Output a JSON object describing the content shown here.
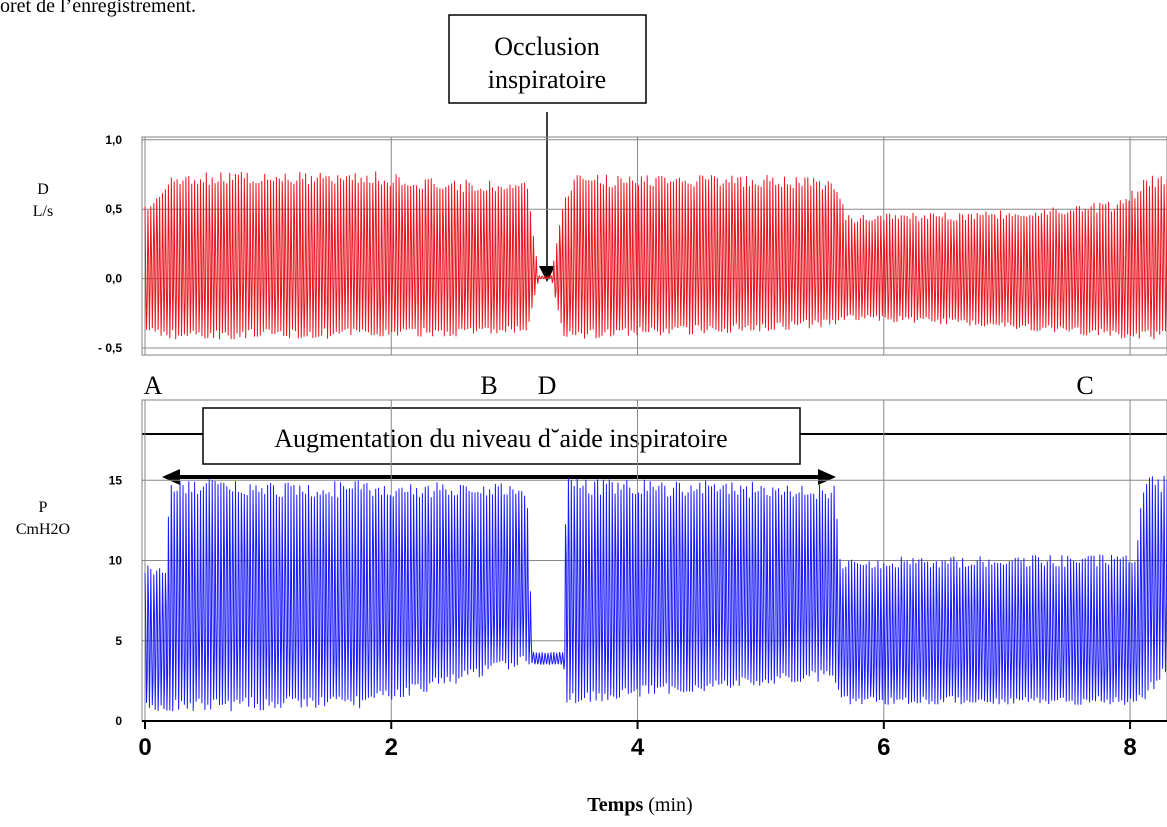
{
  "header_fragment": "oret de l’enregistrement.",
  "annotations": {
    "occlusion_line1": "Occlusion",
    "occlusion_line2": "inspiratoire",
    "augmentation": "Augmentation du niveau d˘aide inspiratoire",
    "point_A": "A",
    "point_B": "B",
    "point_D": "D",
    "point_C": "C"
  },
  "chart_data": [
    {
      "type": "line",
      "ylabel_line1": "D",
      "ylabel_line2": "L/s",
      "y_ticks": [
        "1,0",
        "0,5",
        "0,0",
        "- 0,5"
      ],
      "y_tick_values": [
        1.0,
        0.5,
        0.0,
        -0.5
      ],
      "ylim": [
        -0.55,
        1.02
      ],
      "xlim": [
        0,
        8.3
      ],
      "grid": true,
      "color": "#e8141e",
      "series": [
        {
          "x": [
            0.0,
            0.2,
            1.8,
            2.4,
            3.1,
            3.2,
            3.3,
            3.4,
            3.5,
            4.0,
            5.0,
            5.6,
            5.7,
            6.5,
            7.0,
            7.5,
            7.9,
            8.15,
            8.3
          ],
          "peak": [
            0.52,
            0.77,
            0.78,
            0.72,
            0.7,
            0.02,
            0.02,
            0.62,
            0.75,
            0.75,
            0.75,
            0.72,
            0.46,
            0.48,
            0.5,
            0.53,
            0.56,
            0.75,
            0.76
          ],
          "trough": [
            -0.38,
            -0.44,
            -0.43,
            -0.42,
            -0.4,
            0.0,
            0.0,
            -0.45,
            -0.44,
            -0.42,
            -0.38,
            -0.35,
            -0.3,
            -0.33,
            -0.36,
            -0.4,
            -0.43,
            -0.44,
            -0.45
          ]
        }
      ]
    },
    {
      "type": "line",
      "ylabel_line1": "P",
      "ylabel_line2": "CmH2O",
      "y_ticks": [
        "15",
        "10",
        "5",
        "0"
      ],
      "y_tick_values": [
        15,
        10,
        5,
        0
      ],
      "ylim": [
        0,
        20
      ],
      "xlim": [
        0,
        8.3
      ],
      "grid": true,
      "color": "#1a1aff",
      "xlabel_bold": "Temps",
      "xlabel_rest": " (min)",
      "x_ticks": [
        "0",
        "2",
        "4",
        "6",
        "8"
      ],
      "x_tick_values": [
        0,
        2,
        4,
        6,
        8
      ],
      "series": [
        {
          "x": [
            0.0,
            0.17,
            0.2,
            1.8,
            3.1,
            3.15,
            3.4,
            3.42,
            5.6,
            5.65,
            8.05,
            8.1,
            8.3
          ],
          "peak": [
            9.7,
            9.7,
            15.2,
            15.0,
            14.8,
            4.3,
            4.3,
            15.2,
            14.8,
            10.2,
            10.4,
            15.3,
            15.3
          ],
          "trough": [
            0.6,
            0.6,
            0.5,
            0.8,
            3.5,
            3.5,
            3.5,
            1.0,
            2.5,
            1.0,
            1.0,
            1.0,
            3.0
          ]
        }
      ]
    }
  ]
}
